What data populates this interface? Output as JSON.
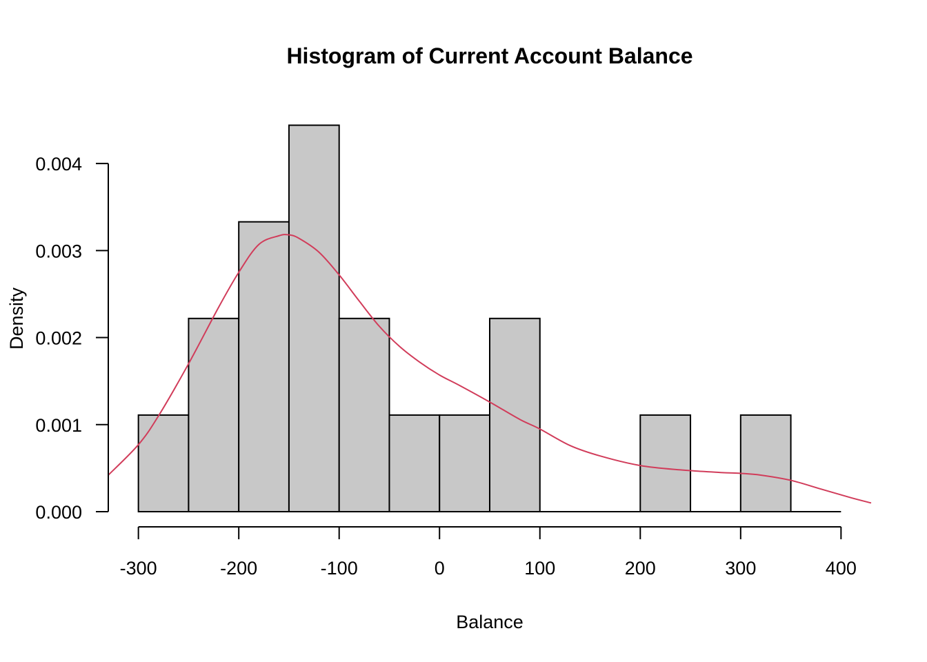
{
  "chart_data": {
    "type": "bar",
    "subtype": "histogram",
    "title": "Histogram of Current Account Balance",
    "xlabel": "Balance",
    "ylabel": "Density",
    "xlim": [
      -330,
      430
    ],
    "ylim": [
      0,
      0.0045
    ],
    "x_ticks": [
      -300,
      -200,
      -100,
      0,
      100,
      200,
      300,
      400
    ],
    "x_tick_labels": [
      "-300",
      "-200",
      "-100",
      "0",
      "100",
      "200",
      "300",
      "400"
    ],
    "y_ticks": [
      0,
      0.001,
      0.002,
      0.003,
      0.004
    ],
    "y_tick_labels": [
      "0.000",
      "0.001",
      "0.002",
      "0.003",
      "0.004"
    ],
    "bins": [
      {
        "start": -300,
        "end": -250,
        "density": 0.00111
      },
      {
        "start": -250,
        "end": -200,
        "density": 0.00222
      },
      {
        "start": -200,
        "end": -150,
        "density": 0.00333
      },
      {
        "start": -150,
        "end": -100,
        "density": 0.00444
      },
      {
        "start": -100,
        "end": -50,
        "density": 0.00222
      },
      {
        "start": -50,
        "end": 0,
        "density": 0.00111
      },
      {
        "start": 0,
        "end": 50,
        "density": 0.00111
      },
      {
        "start": 50,
        "end": 100,
        "density": 0.00222
      },
      {
        "start": 100,
        "end": 150,
        "density": 0
      },
      {
        "start": 150,
        "end": 200,
        "density": 0
      },
      {
        "start": 200,
        "end": 250,
        "density": 0.00111
      },
      {
        "start": 250,
        "end": 300,
        "density": 0
      },
      {
        "start": 300,
        "end": 350,
        "density": 0.00111
      },
      {
        "start": 350,
        "end": 400,
        "density": 0
      }
    ],
    "density_curve": {
      "x": [
        -330,
        -300,
        -280,
        -250,
        -220,
        -200,
        -180,
        -160,
        -150,
        -140,
        -120,
        -100,
        -80,
        -60,
        -40,
        -20,
        0,
        20,
        50,
        80,
        100,
        130,
        160,
        200,
        240,
        280,
        300,
        320,
        350,
        380,
        410,
        430
      ],
      "y": [
        0.00042,
        0.00077,
        0.0011,
        0.0017,
        0.00235,
        0.00275,
        0.00307,
        0.00317,
        0.00318,
        0.00314,
        0.00298,
        0.00272,
        0.00242,
        0.00213,
        0.0019,
        0.00172,
        0.00157,
        0.00145,
        0.00126,
        0.00106,
        0.00095,
        0.00076,
        0.00064,
        0.00053,
        0.00048,
        0.00045,
        0.00044,
        0.00042,
        0.00036,
        0.00026,
        0.00016,
        0.0001
      ]
    },
    "bar_fill": "#c8c8c8",
    "curve_color": "#d13c5a",
    "grid": false
  }
}
